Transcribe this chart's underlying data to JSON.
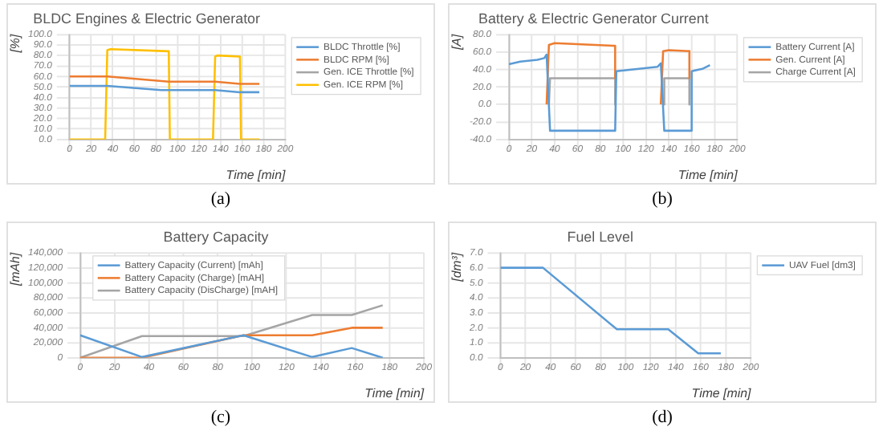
{
  "chart_data": [
    {
      "type": "line",
      "title": "BLDC Engines & Electric Generator",
      "xlabel": "Time [min]",
      "ylabel": "[%]",
      "annotations": [
        "(a)"
      ],
      "xlim": [
        0,
        200
      ],
      "xticks": [
        0,
        20,
        40,
        60,
        80,
        100,
        120,
        140,
        160,
        180,
        200
      ],
      "ylim": [
        0,
        100
      ],
      "yticks": [
        {
          "value": 0,
          "label": "0.0"
        },
        {
          "value": 10,
          "label": "10.0"
        },
        {
          "value": 20,
          "label": "20.0"
        },
        {
          "value": 30,
          "label": "30.0"
        },
        {
          "value": 40,
          "label": "40.0"
        },
        {
          "value": 50,
          "label": "50.0"
        },
        {
          "value": 60,
          "label": "60.0"
        },
        {
          "value": 70,
          "label": "70.0"
        },
        {
          "value": 80,
          "label": "80.0"
        },
        {
          "value": 90,
          "label": "90.0"
        },
        {
          "value": 100,
          "label": "100.0"
        }
      ],
      "grid": true,
      "legend": "top right",
      "marker": "none",
      "line_style": "solid",
      "series": [
        {
          "name": "BLDC Throttle [%]",
          "color": "#5b9bd5",
          "x": [
            0,
            35,
            85,
            135,
            158,
            176
          ],
          "values": [
            51,
            51,
            47,
            47,
            45,
            45
          ]
        },
        {
          "name": "BLDC RPM [%]",
          "color": "#ed7d31",
          "x": [
            0,
            35,
            92,
            135,
            158,
            176
          ],
          "values": [
            60,
            60,
            55,
            55,
            53,
            53
          ]
        },
        {
          "name": "Gen. ICE Throttle [%]",
          "color": "#a5a5a5"
        },
        {
          "name": "Gen. ICE RPM [%]",
          "color": "#ffc000",
          "x": [
            0,
            33,
            35,
            38,
            92,
            93,
            133,
            135,
            137,
            158,
            159,
            176
          ],
          "values": [
            0,
            0,
            85,
            86,
            84,
            0,
            0,
            79,
            80,
            79,
            0,
            0
          ]
        }
      ]
    },
    {
      "type": "line",
      "title": "Battery & Electric Generator Current",
      "xlabel": "Time [min]",
      "ylabel": "[A]",
      "annotations": [
        "(b)"
      ],
      "xlim": [
        0,
        200
      ],
      "xticks": [
        0,
        20,
        40,
        60,
        80,
        100,
        120,
        140,
        160,
        180,
        200
      ],
      "ylim": [
        -40,
        80
      ],
      "yticks": [
        {
          "value": -40,
          "label": "-40.0"
        },
        {
          "value": -20,
          "label": "-20.0"
        },
        {
          "value": 0,
          "label": "0.0"
        },
        {
          "value": 20,
          "label": "20.0"
        },
        {
          "value": 40,
          "label": "40.0"
        },
        {
          "value": 60,
          "label": "60.0"
        },
        {
          "value": 80,
          "label": "80.0"
        }
      ],
      "grid": true,
      "legend": "top right",
      "marker": "none",
      "line_style": "solid",
      "series": [
        {
          "name": "Battery Current [A]",
          "color": "#5b9bd5",
          "x": [
            0,
            10,
            25,
            31,
            33,
            36,
            93,
            94,
            130,
            133,
            136,
            159,
            160,
            170,
            176
          ],
          "values": [
            46,
            49,
            51,
            53,
            57,
            -30,
            -30,
            38,
            43,
            47,
            -30,
            -30,
            38,
            41,
            45
          ]
        },
        {
          "name": "Gen. Current [A]",
          "color": "#ed7d31",
          "x": [
            33,
            35,
            40,
            93,
            93,
            113,
            133,
            135,
            140,
            158,
            158
          ],
          "values": [
            0,
            68,
            70,
            67,
            30,
            null,
            0,
            61,
            62,
            61,
            30
          ]
        },
        {
          "name": "Charge Current [A]",
          "color": "#a5a5a5",
          "x": [
            35,
            36,
            93,
            93,
            113,
            135,
            136,
            158,
            158
          ],
          "values": [
            0,
            30,
            30,
            0,
            null,
            0,
            30,
            30,
            0
          ]
        }
      ]
    },
    {
      "type": "line",
      "title": "Battery Capacity",
      "xlabel": "Time [min]",
      "ylabel": "[mAh]",
      "annotations": [
        "(c)"
      ],
      "xlim": [
        0,
        200
      ],
      "xticks": [
        0,
        20,
        40,
        60,
        80,
        100,
        120,
        140,
        160,
        180,
        200
      ],
      "ylim": [
        0,
        140000
      ],
      "yticks": [
        {
          "value": 0,
          "label": "0"
        },
        {
          "value": 20000,
          "label": "20,000"
        },
        {
          "value": 40000,
          "label": "40,000"
        },
        {
          "value": 60000,
          "label": "60,000"
        },
        {
          "value": 80000,
          "label": "80,000"
        },
        {
          "value": 100000,
          "label": "100,000"
        },
        {
          "value": 120000,
          "label": "120,000"
        },
        {
          "value": 140000,
          "label": "140,000"
        }
      ],
      "grid": true,
      "legend": "top left",
      "marker": "none",
      "line_style": "solid",
      "series": [
        {
          "name": "Battery Capacity (Current) [mAh]",
          "color": "#5b9bd5",
          "x": [
            0,
            36,
            95,
            135,
            158,
            176
          ],
          "values": [
            30000,
            1000,
            30000,
            1000,
            13000,
            0
          ]
        },
        {
          "name": "Battery Capacity (Charge) [mAH]",
          "color": "#ed7d31",
          "x": [
            0,
            36,
            95,
            135,
            158,
            176
          ],
          "values": [
            0,
            0,
            30000,
            30000,
            40000,
            40000
          ]
        },
        {
          "name": "Battery Capacity (DisCharge) [mAH]",
          "color": "#a5a5a5",
          "x": [
            0,
            36,
            95,
            135,
            158,
            176
          ],
          "values": [
            0,
            29000,
            29000,
            57000,
            57000,
            70000
          ]
        }
      ]
    },
    {
      "type": "line",
      "title": "Fuel Level",
      "xlabel": "Time [min]",
      "ylabel": "[dm³]",
      "annotations": [
        "(d)"
      ],
      "xlim": [
        0,
        200
      ],
      "xticks": [
        0,
        20,
        40,
        60,
        80,
        100,
        120,
        140,
        160,
        180,
        200
      ],
      "ylim": [
        0,
        7
      ],
      "yticks": [
        {
          "value": 0,
          "label": "0.0"
        },
        {
          "value": 1,
          "label": "1.0"
        },
        {
          "value": 2,
          "label": "2.0"
        },
        {
          "value": 3,
          "label": "3.0"
        },
        {
          "value": 4,
          "label": "4.0"
        },
        {
          "value": 5,
          "label": "5.0"
        },
        {
          "value": 6,
          "label": "6.0"
        },
        {
          "value": 7,
          "label": "7.0"
        }
      ],
      "grid": true,
      "legend": "top right",
      "marker": "none",
      "line_style": "solid",
      "series": [
        {
          "name": "UAV Fuel [dm3]",
          "color": "#5b9bd5",
          "x": [
            0,
            34,
            93,
            134,
            158,
            176
          ],
          "values": [
            6,
            6,
            1.9,
            1.9,
            0.3,
            0.3
          ]
        }
      ]
    }
  ]
}
